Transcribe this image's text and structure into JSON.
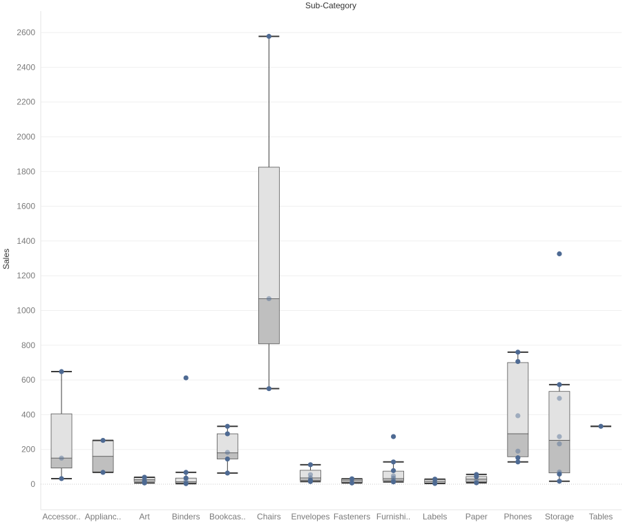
{
  "chart_data": {
    "type": "boxplot",
    "title": "Sub-Category",
    "ylabel": "Sales",
    "ylim": [
      -150,
      2750
    ],
    "yticks": [
      0,
      200,
      400,
      600,
      800,
      1000,
      1200,
      1400,
      1600,
      1800,
      2000,
      2200,
      2400,
      2600
    ],
    "grid": true,
    "categories": [
      {
        "label": "Accessor..",
        "min": 32,
        "q1": 93,
        "median": 150,
        "q3": 405,
        "max": 648,
        "points": [
          32,
          150,
          648
        ]
      },
      {
        "label": "Applianc..",
        "min": 68,
        "q1": 68,
        "median": 160,
        "q3": 252,
        "max": 252,
        "points": [
          68,
          252
        ]
      },
      {
        "label": "Art",
        "min": 7,
        "q1": 15,
        "median": 26,
        "q3": 40,
        "max": 40,
        "points": [
          7,
          15,
          26,
          40
        ]
      },
      {
        "label": "Binders",
        "min": 3,
        "q1": 6,
        "median": 14,
        "q3": 35,
        "max": 68,
        "points": [
          3,
          8,
          22,
          35,
          68,
          612
        ]
      },
      {
        "label": "Bookcas..",
        "min": 64,
        "q1": 145,
        "median": 180,
        "q3": 290,
        "max": 333,
        "points": [
          64,
          145,
          183,
          290,
          333
        ]
      },
      {
        "label": "Chairs",
        "min": 550,
        "q1": 808,
        "median": 1068,
        "q3": 1825,
        "max": 2578,
        "points": [
          550,
          1068,
          2578
        ]
      },
      {
        "label": "Envelopes",
        "min": 15,
        "q1": 22,
        "median": 36,
        "q3": 80,
        "max": 112,
        "points": [
          15,
          22,
          36,
          55,
          112
        ]
      },
      {
        "label": "Fasteners",
        "min": 7,
        "q1": 10,
        "median": 20,
        "q3": 31,
        "max": 31,
        "points": [
          7,
          31
        ]
      },
      {
        "label": "Furnishi..",
        "min": 13,
        "q1": 20,
        "median": 32,
        "q3": 75,
        "max": 128,
        "points": [
          13,
          22,
          35,
          48,
          78,
          128,
          274
        ]
      },
      {
        "label": "Labels",
        "min": 4,
        "q1": 6,
        "median": 16,
        "q3": 29,
        "max": 29,
        "points": [
          4,
          16,
          29
        ]
      },
      {
        "label": "Paper",
        "min": 8,
        "q1": 13,
        "median": 29,
        "q3": 44,
        "max": 56,
        "points": [
          8,
          22,
          44,
          56
        ]
      },
      {
        "label": "Phones",
        "min": 128,
        "q1": 158,
        "median": 290,
        "q3": 700,
        "max": 760,
        "points": [
          128,
          152,
          190,
          394,
          706,
          760
        ]
      },
      {
        "label": "Storage",
        "min": 17,
        "q1": 65,
        "median": 252,
        "q3": 534,
        "max": 573,
        "points": [
          17,
          58,
          70,
          232,
          274,
          494,
          573,
          1326
        ]
      },
      {
        "label": "Tables",
        "min": 333,
        "q1": 333,
        "median": 333,
        "q3": 333,
        "max": 333,
        "points": [
          333
        ]
      }
    ]
  }
}
